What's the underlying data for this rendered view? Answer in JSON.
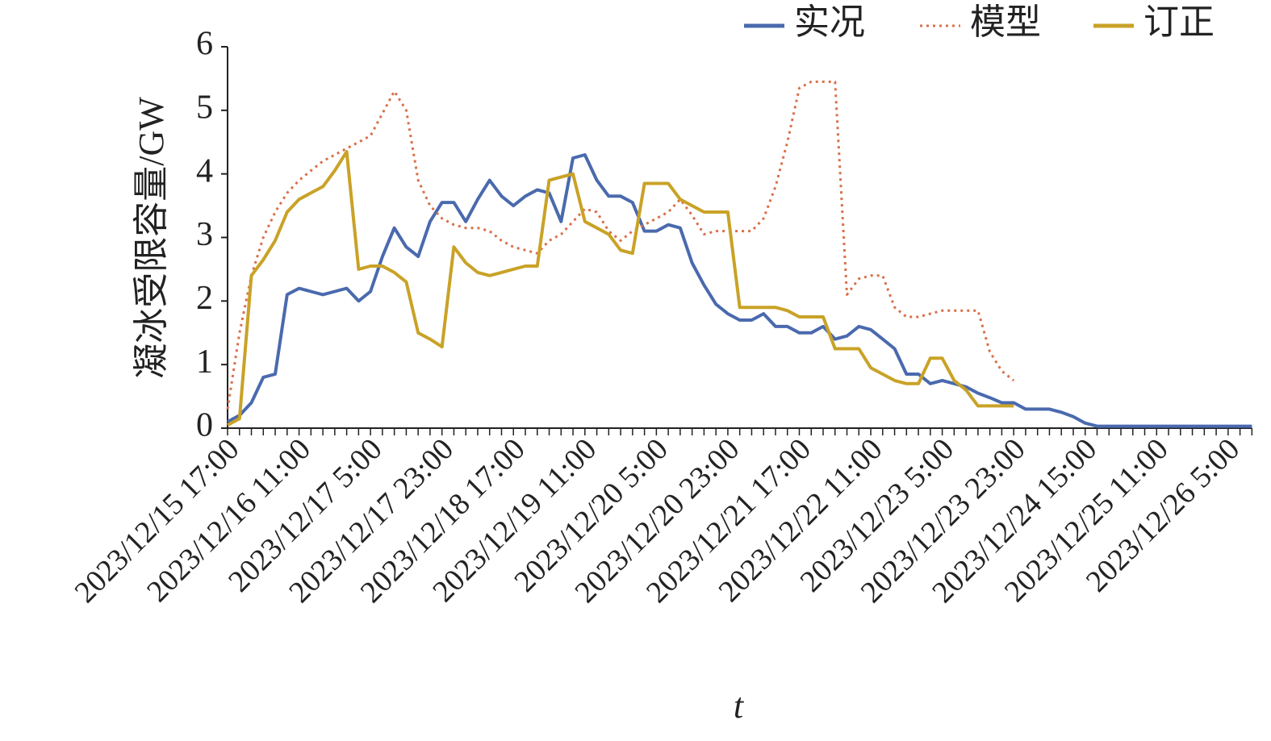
{
  "chart_data": {
    "type": "line",
    "y_label": "凝冰受限容量/GW",
    "x_label": "t",
    "categories": [
      "2023/12/15 17:00",
      null,
      null,
      null,
      null,
      null,
      "2023/12/16 11:00",
      null,
      null,
      null,
      null,
      null,
      "2023/12/17 5:00",
      null,
      null,
      null,
      null,
      null,
      "2023/12/17 23:00",
      null,
      null,
      null,
      null,
      null,
      "2023/12/18 17:00",
      null,
      null,
      null,
      null,
      null,
      "2023/12/19 11:00",
      null,
      null,
      null,
      null,
      null,
      "2023/12/20 5:00",
      null,
      null,
      null,
      null,
      null,
      "2023/12/20 23:00",
      null,
      null,
      null,
      null,
      null,
      "2023/12/21 17:00",
      null,
      null,
      null,
      null,
      null,
      "2023/12/22 11:00",
      null,
      null,
      null,
      null,
      null,
      "2023/12/23 5:00",
      null,
      null,
      null,
      null,
      null,
      "2023/12/23 23:00",
      null,
      null,
      null,
      null,
      null,
      "2023/12/24 15:00",
      null,
      null,
      null,
      null,
      null,
      "2023/12/25 11:00",
      null,
      null,
      null,
      null,
      null,
      "2023/12/26 5:00",
      null,
      null
    ],
    "series": [
      {
        "name": "实况",
        "color": "#4a6aae",
        "dash": false,
        "values": [
          0.1,
          0.2,
          0.4,
          0.8,
          0.85,
          2.1,
          2.2,
          2.15,
          2.1,
          2.15,
          2.2,
          2.0,
          2.15,
          2.7,
          3.15,
          2.85,
          2.7,
          3.25,
          3.55,
          3.55,
          3.25,
          3.6,
          3.9,
          3.65,
          3.5,
          3.65,
          3.75,
          3.7,
          3.25,
          4.25,
          4.3,
          3.9,
          3.65,
          3.65,
          3.55,
          3.1,
          3.1,
          3.2,
          3.15,
          2.6,
          2.25,
          1.95,
          1.8,
          1.7,
          1.7,
          1.8,
          1.6,
          1.6,
          1.5,
          1.5,
          1.6,
          1.4,
          1.45,
          1.6,
          1.55,
          1.4,
          1.25,
          0.85,
          0.85,
          0.7,
          0.75,
          0.7,
          0.65,
          0.55,
          0.48,
          0.4,
          0.4,
          0.3,
          0.3,
          0.3,
          0.25,
          0.18,
          0.08,
          0.03,
          0.03,
          0.03,
          0.03,
          0.03,
          0.03,
          0.03,
          0.03,
          0.03,
          0.03,
          0.03,
          0.03,
          0.03,
          0.03
        ]
      },
      {
        "name": "模型",
        "color": "#d9704a",
        "dash": true,
        "values": [
          0.3,
          1.5,
          2.4,
          3.0,
          3.4,
          3.7,
          3.9,
          4.05,
          4.2,
          4.3,
          4.4,
          4.5,
          4.6,
          4.95,
          5.3,
          5.0,
          3.9,
          3.5,
          3.3,
          3.2,
          3.15,
          3.15,
          3.1,
          2.95,
          2.85,
          2.8,
          2.75,
          2.95,
          3.05,
          3.25,
          3.45,
          3.4,
          3.1,
          2.95,
          3.1,
          3.2,
          3.3,
          3.4,
          3.6,
          3.35,
          3.05,
          3.1,
          3.1,
          3.1,
          3.1,
          3.3,
          3.8,
          4.5,
          5.35,
          5.45,
          5.45,
          5.45,
          2.1,
          2.35,
          2.4,
          2.4,
          1.9,
          1.75,
          1.75,
          1.8,
          1.85,
          1.85,
          1.85,
          1.85,
          1.2,
          0.9,
          0.75,
          null,
          null,
          null,
          null,
          null,
          null,
          null,
          null,
          null,
          null,
          null,
          null,
          null,
          null,
          null,
          null,
          null,
          null,
          null,
          null
        ]
      },
      {
        "name": "订正",
        "color": "#c9a227",
        "dash": false,
        "values": [
          0.05,
          0.15,
          2.4,
          2.65,
          2.95,
          3.4,
          3.6,
          3.7,
          3.8,
          4.05,
          4.35,
          2.5,
          2.55,
          2.55,
          2.45,
          2.3,
          1.5,
          1.4,
          1.28,
          2.85,
          2.6,
          2.45,
          2.4,
          2.45,
          2.5,
          2.55,
          2.55,
          3.9,
          3.95,
          4.0,
          3.25,
          3.15,
          3.05,
          2.8,
          2.75,
          3.85,
          3.85,
          3.85,
          3.6,
          3.5,
          3.4,
          3.4,
          3.4,
          1.9,
          1.9,
          1.9,
          1.9,
          1.85,
          1.75,
          1.75,
          1.75,
          1.25,
          1.25,
          1.25,
          0.95,
          0.85,
          0.75,
          0.7,
          0.7,
          1.1,
          1.1,
          0.75,
          0.6,
          0.35,
          0.35,
          0.35,
          0.35,
          null,
          null,
          null,
          null,
          null,
          null,
          null,
          null,
          null,
          null,
          null,
          null,
          null,
          null,
          null,
          null,
          null,
          null,
          null,
          null
        ]
      }
    ],
    "ylim": [
      0,
      6
    ],
    "yticks": [
      0,
      1,
      2,
      3,
      4,
      5,
      6
    ],
    "grid": false,
    "legend": "top-right"
  }
}
